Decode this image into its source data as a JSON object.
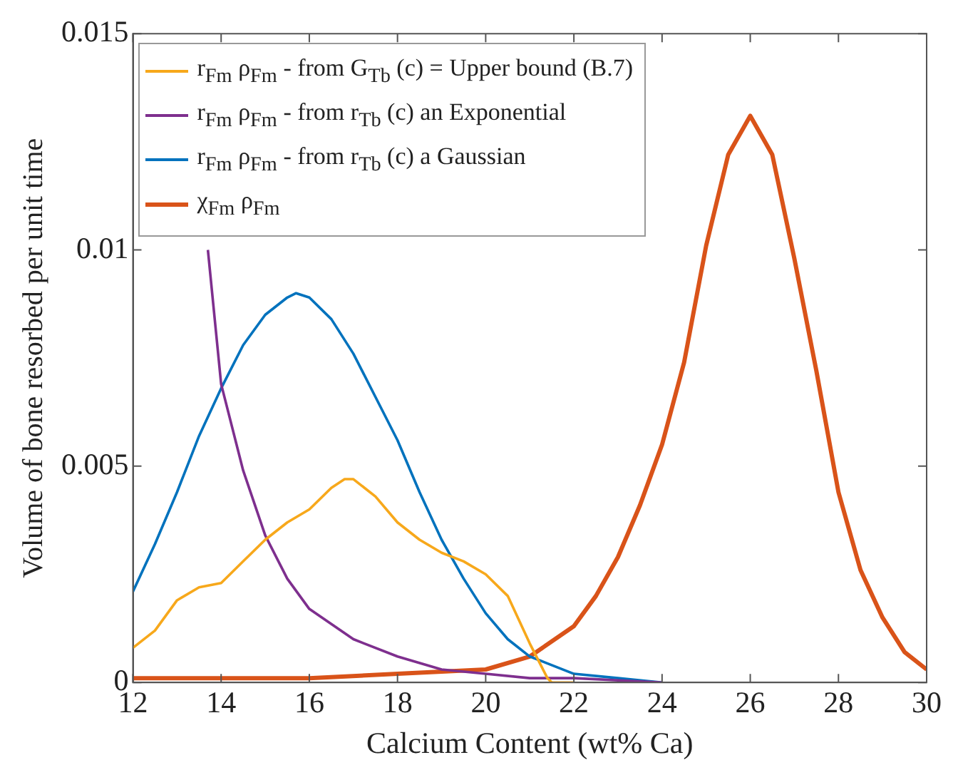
{
  "chart_data": {
    "type": "line",
    "xlabel": "Calcium Content (wt% Ca)",
    "ylabel": "Volume of bone resorbed per unit time",
    "xlim": [
      12,
      30
    ],
    "xticks": [
      12,
      14,
      16,
      18,
      20,
      22,
      24,
      26,
      28,
      30
    ],
    "ylim": [
      0,
      0.015
    ],
    "yticks": [
      0,
      0.005,
      0.01,
      0.015
    ],
    "grid": false,
    "legend": "top left",
    "marker": "none",
    "line_style": "solid",
    "series": [
      {
        "name": "r$_{Fm}$ ρ$_{Fm}$ - from G$_{Tb}$ (c) = Upper bound (B.7)",
        "color": "#f7a81b",
        "x": [
          12,
          12.5,
          13,
          13.5,
          14,
          14.5,
          15,
          15.5,
          16,
          16.5,
          16.8,
          17,
          17.5,
          18,
          18.5,
          19,
          19.5,
          20,
          20.5,
          21,
          21.4,
          21.5,
          22
        ],
        "values": [
          0.0008,
          0.0012,
          0.0019,
          0.0022,
          0.0023,
          0.0028,
          0.0033,
          0.0037,
          0.004,
          0.0045,
          0.0047,
          0.0047,
          0.0043,
          0.0037,
          0.0033,
          0.003,
          0.0028,
          0.0025,
          0.002,
          0.0009,
          0.0001,
          0,
          0
        ]
      },
      {
        "name": "r$_{Fm}$ ρ$_{Fm}$ - from r$_{Tb}$ (c) an Exponential",
        "color": "#7e2f8e",
        "x": [
          13.7,
          14,
          14.5,
          15,
          15.5,
          16,
          17,
          18,
          19,
          20,
          21,
          22,
          24
        ],
        "values": [
          0.01,
          0.0069,
          0.0049,
          0.0034,
          0.0024,
          0.0017,
          0.001,
          0.0006,
          0.0003,
          0.0002,
          0.0001,
          0.0001,
          0
        ]
      },
      {
        "name": "r$_{Fm}$ ρ$_{Fm}$ - from r$_{Tb}$ (c) a Gaussian",
        "color": "#0072bd",
        "x": [
          12,
          12.5,
          13,
          13.5,
          14,
          14.5,
          15,
          15.5,
          15.7,
          16,
          16.5,
          17,
          17.5,
          18,
          18.5,
          19,
          19.5,
          20,
          20.5,
          21,
          22,
          23,
          24
        ],
        "values": [
          0.0021,
          0.0032,
          0.0044,
          0.0057,
          0.0068,
          0.0078,
          0.0085,
          0.0089,
          0.009,
          0.0089,
          0.0084,
          0.0076,
          0.0066,
          0.0056,
          0.0044,
          0.0033,
          0.0024,
          0.0016,
          0.001,
          0.0006,
          0.0002,
          0.0001,
          0
        ]
      },
      {
        "name": "χ$_{Fm}$ ρ$_{Fm}$",
        "color": "#d95319",
        "x": [
          12,
          14,
          16,
          18,
          19,
          20,
          21,
          22,
          22.5,
          23,
          23.5,
          24,
          24.5,
          25,
          25.5,
          26,
          26.5,
          27,
          27.5,
          28,
          28.5,
          29,
          29.5,
          30
        ],
        "values": [
          0.0001,
          0.0001,
          0.0001,
          0.0002,
          0.00025,
          0.0003,
          0.0006,
          0.0013,
          0.002,
          0.0029,
          0.0041,
          0.0055,
          0.0074,
          0.0101,
          0.0122,
          0.0131,
          0.0122,
          0.0098,
          0.0072,
          0.0044,
          0.0026,
          0.0015,
          0.0007,
          0.0003
        ]
      }
    ]
  }
}
